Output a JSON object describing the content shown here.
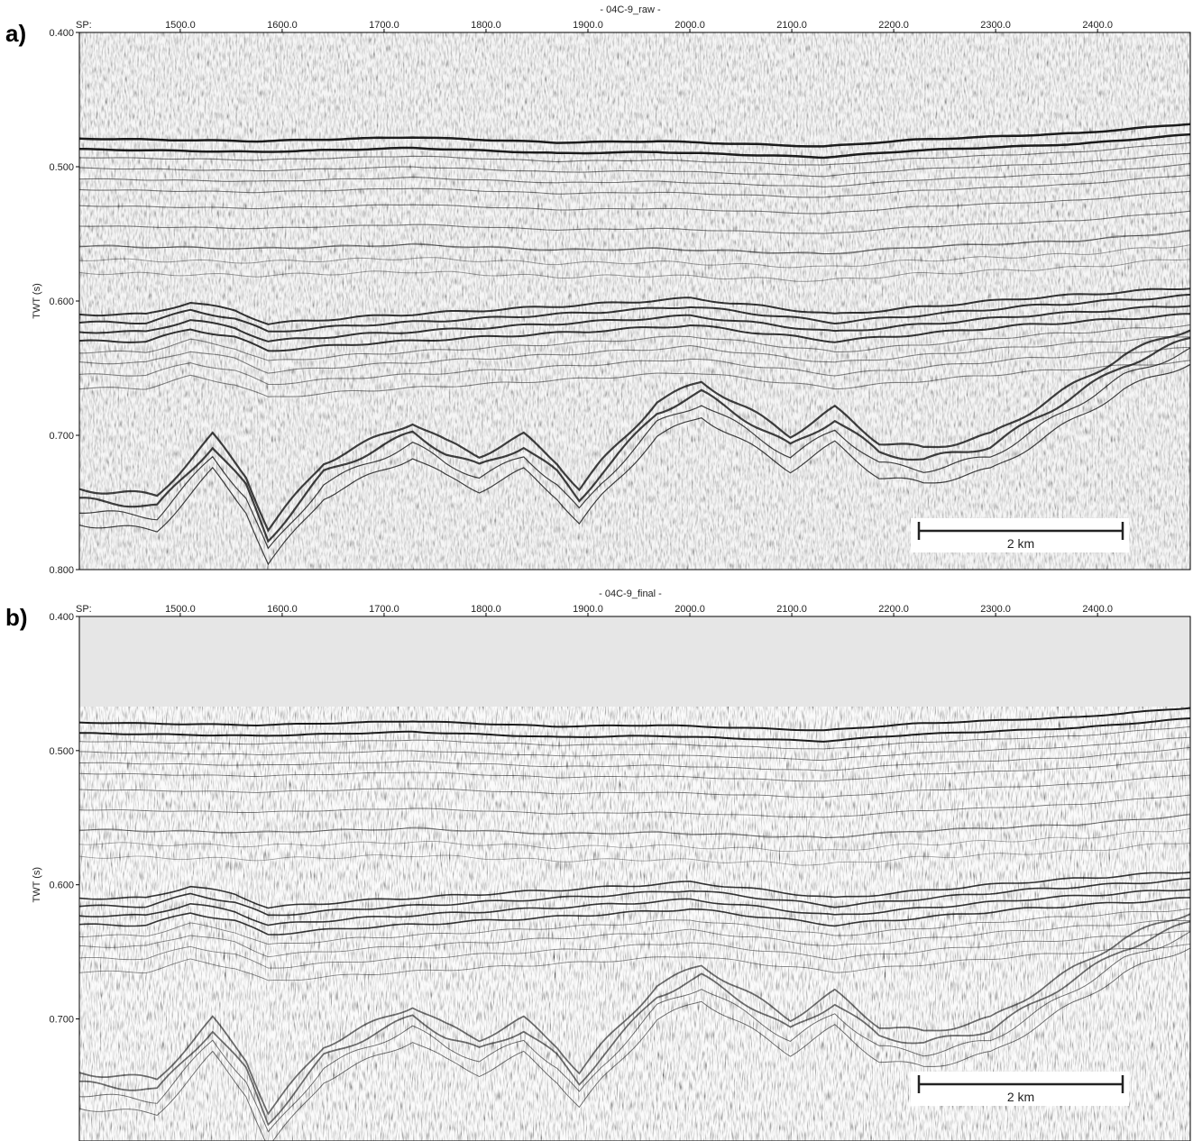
{
  "panels": [
    {
      "label": "a)",
      "title": "- 04C-9_raw -",
      "x_axis_label": "SP:",
      "y_axis_label": "TWT (s)",
      "xlim": [
        1401,
        2491
      ],
      "xticks": [
        {
          "value": 1500,
          "label": "1500.0"
        },
        {
          "value": 1600,
          "label": "1600.0"
        },
        {
          "value": 1700,
          "label": "1700.0"
        },
        {
          "value": 1800,
          "label": "1800.0"
        },
        {
          "value": 1900,
          "label": "1900.0"
        },
        {
          "value": 2000,
          "label": "2000.0"
        },
        {
          "value": 2100,
          "label": "2100.0"
        },
        {
          "value": 2200,
          "label": "2200.0"
        },
        {
          "value": 2300,
          "label": "2300.0"
        },
        {
          "value": 2400,
          "label": "2400.0"
        }
      ],
      "ylim": [
        0.4,
        0.8
      ],
      "yticks": [
        {
          "value": 0.4,
          "label": "0.400"
        },
        {
          "value": 0.5,
          "label": "0.500"
        },
        {
          "value": 0.6,
          "label": "0.600"
        },
        {
          "value": 0.7,
          "label": "0.700"
        },
        {
          "value": 0.8,
          "label": "0.800"
        }
      ],
      "scale_bar": "2 km"
    },
    {
      "label": "b)",
      "title": "- 04C-9_final -",
      "x_axis_label": "SP:",
      "y_axis_label": "TWT (s)",
      "xlim": [
        1401,
        2491
      ],
      "xticks": [
        {
          "value": 1500,
          "label": "1500.0"
        },
        {
          "value": 1600,
          "label": "1600.0"
        },
        {
          "value": 1700,
          "label": "1700.0"
        },
        {
          "value": 1800,
          "label": "1800.0"
        },
        {
          "value": 1900,
          "label": "1900.0"
        },
        {
          "value": 2000,
          "label": "2000.0"
        },
        {
          "value": 2100,
          "label": "2100.0"
        },
        {
          "value": 2200,
          "label": "2200.0"
        },
        {
          "value": 2300,
          "label": "2300.0"
        },
        {
          "value": 2400,
          "label": "2400.0"
        }
      ],
      "ylim": [
        0.4,
        0.791
      ],
      "yticks": [
        {
          "value": 0.4,
          "label": "0.400"
        },
        {
          "value": 0.5,
          "label": "0.500"
        },
        {
          "value": 0.6,
          "label": "0.600"
        },
        {
          "value": 0.7,
          "label": "0.700"
        }
      ],
      "scale_bar": "2 km"
    }
  ]
}
